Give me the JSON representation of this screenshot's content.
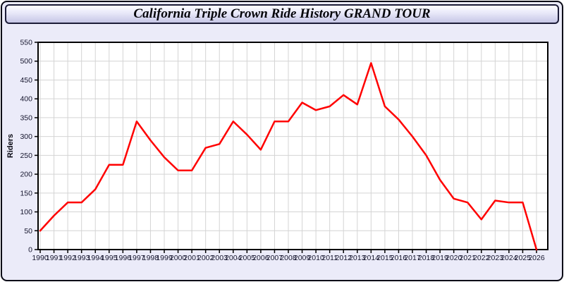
{
  "header": {
    "title": "California Triple Crown Ride History GRAND TOUR"
  },
  "colors": {
    "page_background": "#ebebf9",
    "header_border": "#1c1c38",
    "line": "#ff0000",
    "plot_background": "#ffffff",
    "grid": "#d4d4d4",
    "axis": "#000000",
    "tick_label": "#15152d"
  },
  "chart_data": {
    "type": "line",
    "title": "California Triple Crown Ride History GRAND TOUR",
    "xlabel": "",
    "ylabel": "Riders",
    "ylim": [
      0,
      550
    ],
    "ytick_step": 50,
    "grid": true,
    "legend": "none",
    "x": [
      1990,
      1991,
      1992,
      1993,
      1994,
      1995,
      1996,
      1997,
      1998,
      1999,
      2000,
      2001,
      2002,
      2003,
      2004,
      2005,
      2006,
      2007,
      2008,
      2009,
      2010,
      2011,
      2012,
      2013,
      2014,
      2015,
      2016,
      2017,
      2018,
      2019,
      2020,
      2021,
      2022,
      2023,
      2024,
      2025,
      2026
    ],
    "series": [
      {
        "name": "Riders",
        "color": "#ff0000",
        "values": [
          50,
          90,
          125,
          125,
          160,
          225,
          225,
          340,
          290,
          245,
          210,
          210,
          270,
          280,
          340,
          305,
          265,
          340,
          340,
          390,
          370,
          380,
          410,
          385,
          495,
          380,
          345,
          300,
          250,
          185,
          135,
          125,
          80,
          130,
          125,
          125,
          0
        ]
      }
    ]
  }
}
